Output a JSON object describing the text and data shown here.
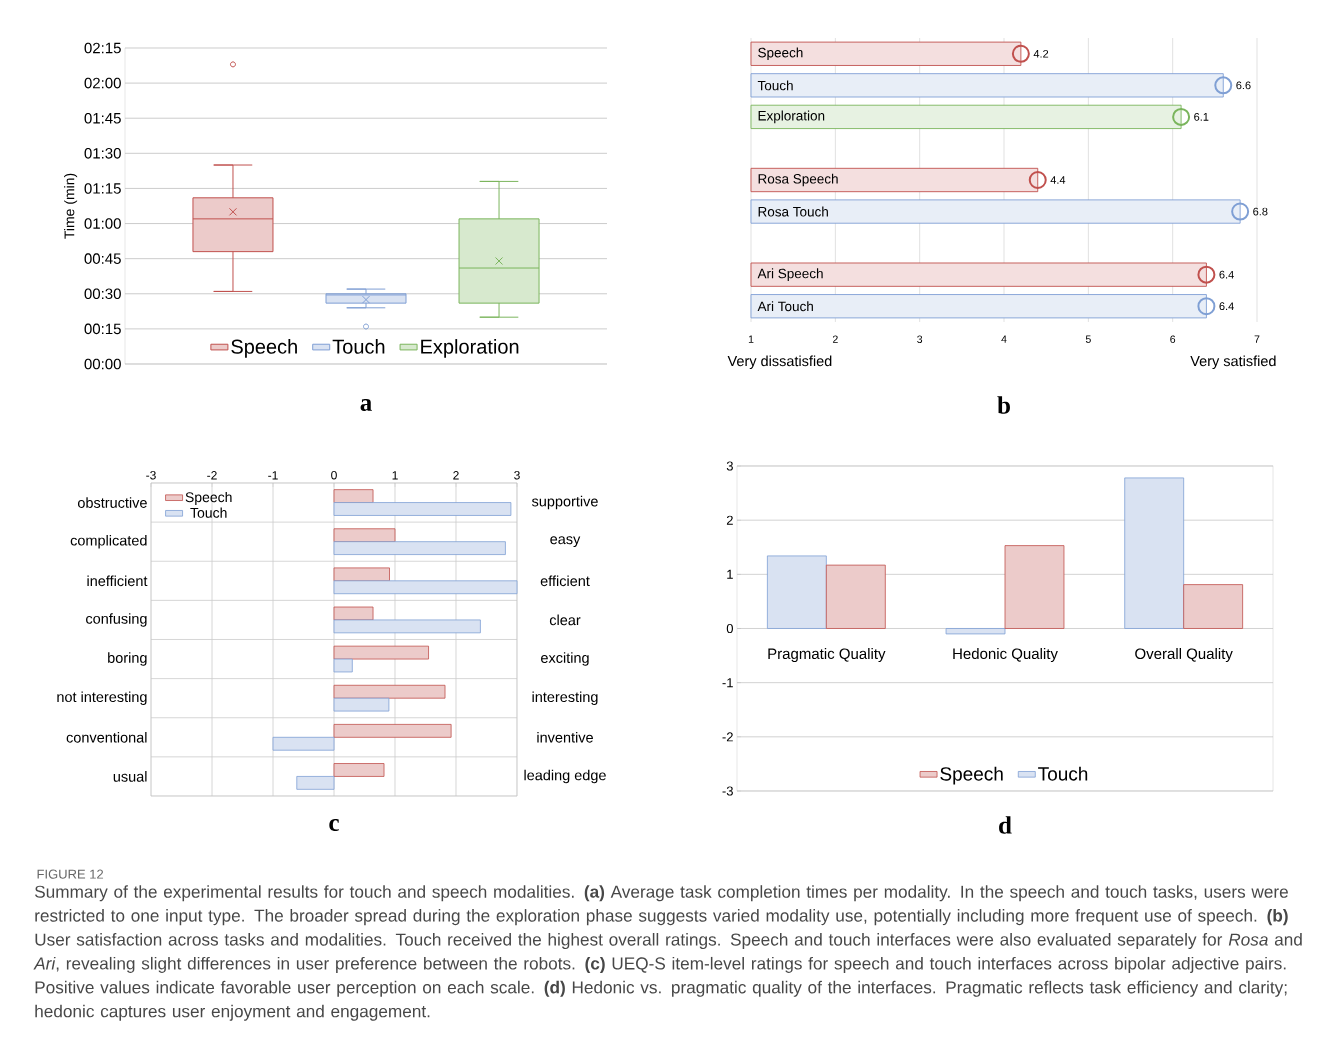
{
  "chart_data": [
    {
      "type": "box",
      "title": "a",
      "ylabel": "Time (min)",
      "categories": [
        null
      ],
      "ylim": [
        0,
        135
      ],
      "yticks": [
        {
          "value": 0,
          "label": "00:00"
        },
        {
          "value": 15,
          "label": "00:15"
        },
        {
          "value": 30,
          "label": "00:30"
        },
        {
          "value": 45,
          "label": "00:45"
        },
        {
          "value": 60,
          "label": "01:00"
        },
        {
          "value": 75,
          "label": "01:15"
        },
        {
          "value": 90,
          "label": "01:30"
        },
        {
          "value": 105,
          "label": "01:45"
        },
        {
          "value": 120,
          "label": "02:00"
        },
        {
          "value": 135,
          "label": "02:15"
        }
      ],
      "grid": "y",
      "legend": "bottom",
      "series": [
        {
          "name": "Speech",
          "color": "#c0504d",
          "boxes": [
            {
              "low": 31,
              "q1": 48,
              "median": 62,
              "q3": 71,
              "high": 85,
              "mean": 65,
              "outliers": [
                128
              ]
            }
          ]
        },
        {
          "name": "Touch",
          "color": "#7f9fd4",
          "boxes": [
            {
              "low": 24,
              "q1": 26,
              "median": 29.5,
              "q3": 30,
              "high": 32,
              "mean": 27.5,
              "outliers": [
                16
              ]
            }
          ]
        },
        {
          "name": "Exploration",
          "color": "#7ab55c",
          "boxes": [
            {
              "low": 20,
              "q1": 26,
              "median": 41,
              "q3": 62,
              "high": 78,
              "mean": 44
            }
          ]
        }
      ]
    },
    {
      "type": "bar",
      "title": "b",
      "orientation": "horizontal",
      "categories": [
        "Speech",
        "Touch",
        "Exploration",
        null,
        "Rosa Speech",
        "Rosa Touch",
        null,
        "Ari Speech",
        "Ari Touch"
      ],
      "series": [
        {
          "values": [
            4.2,
            6.6,
            6.1,
            null,
            4.4,
            6.8,
            null,
            6.4,
            6.4
          ],
          "colors": [
            "#c0504d",
            "#7f9fd4",
            "#7ab55c",
            null,
            "#c0504d",
            "#7f9fd4",
            null,
            "#c0504d",
            "#7f9fd4"
          ]
        },
        {
          "type": "scatter",
          "values": [
            4.2,
            6.6,
            6.1,
            null,
            4.4,
            6.8,
            null,
            6.4,
            6.4
          ],
          "value_labels": [
            "4.2",
            "6.6",
            "6.1",
            null,
            "4.4",
            "6.8",
            null,
            "6.4",
            "6.4"
          ],
          "colors": [
            "#c0504d",
            "#7f9fd4",
            "#7ab55c",
            null,
            "#c0504d",
            "#7f9fd4",
            null,
            "#c0504d",
            "#7f9fd4"
          ]
        }
      ],
      "xlim": [
        1,
        7
      ],
      "xticks": [
        1,
        2,
        3,
        4,
        5,
        6,
        7
      ],
      "grid": "x",
      "marker": "circle",
      "annotations": [
        "Very dissatisfied",
        "Very satisfied"
      ]
    },
    {
      "type": "bar",
      "title": "c",
      "orientation": "horizontal",
      "categories": [
        "obstructive",
        "complicated",
        "inefficient",
        "confusing",
        "boring",
        "not interesting",
        "conventional",
        "usual"
      ],
      "y2_categories": [
        "supportive",
        "easy",
        "efficient",
        "clear",
        "exciting",
        "interesting",
        "inventive",
        "leading edge"
      ],
      "xlim": [
        -3,
        3
      ],
      "xticks": [
        -3,
        -2,
        -1,
        0,
        1,
        2,
        3
      ],
      "grid": true,
      "legend": "top left",
      "series": [
        {
          "name": "Speech",
          "color": "#c0504d",
          "values": [
            0.64,
            1.0,
            0.91,
            0.64,
            1.55,
            1.82,
            1.92,
            0.82
          ]
        },
        {
          "name": "Touch",
          "color": "#7f9fd4",
          "values": [
            2.9,
            2.81,
            3.0,
            2.4,
            0.3,
            0.9,
            -1.0,
            -0.61
          ]
        }
      ]
    },
    {
      "type": "bar",
      "title": "d",
      "categories": [
        "Pragmatic Quality",
        "Hedonic Quality",
        "Overall Quality"
      ],
      "ylim": [
        -3,
        3
      ],
      "yticks": [
        -3,
        -2,
        -1,
        0,
        1,
        2,
        3
      ],
      "grid": true,
      "legend": "bottom",
      "series": [
        {
          "name": "Touch",
          "color": "#7f9fd4",
          "values": [
            1.34,
            -0.1,
            2.78
          ]
        },
        {
          "name": "Speech",
          "color": "#c0504d",
          "values": [
            1.17,
            1.53,
            0.81
          ]
        }
      ],
      "annotations": [
        "FIGURE 12",
        "Summary of the experimental results for touch and speech modalities. **(a)** Average task completion times per modality. In the speech and touch tasks, users were restricted to one input type. The broader spread during the exploration phase suggests varied modality use, potentially including more frequent use of speech. **(b)** User satisfaction across tasks and modalities. Touch received the highest overall ratings. Speech and touch interfaces were also evaluated separately for *Rosa* and *Ari*, revealing slight differences in user preference between the robots. **(c)** UEQ-S item-level ratings for speech and touch interfaces across bipolar adjective pairs. Positive values indicate favorable user perception on each scale. **(d)** Hedonic vs. pragmatic quality of the interfaces. Pragmatic reflects task efficiency and clarity; hedonic captures user enjoyment and engagement."
      ]
    }
  ]
}
